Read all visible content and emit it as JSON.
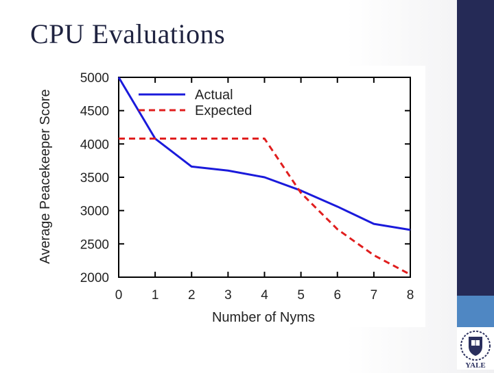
{
  "slide": {
    "title": "CPU Evaluations"
  },
  "logo": {
    "text": "YALE"
  },
  "colors": {
    "band": "#252a56",
    "accent": "#4f87c3",
    "actual": "#1a1adb",
    "expected": "#e01e1e"
  },
  "chart_data": {
    "type": "line",
    "title": "",
    "xlabel": "Number of Nyms",
    "ylabel": "Average Peacekeeper Score",
    "xlim": [
      0,
      8
    ],
    "ylim": [
      2000,
      5000
    ],
    "x": [
      0,
      1,
      2,
      3,
      4,
      5,
      6,
      7,
      8
    ],
    "x_ticks": [
      "0",
      "1",
      "2",
      "3",
      "4",
      "5",
      "6",
      "7",
      "8"
    ],
    "y_ticks": [
      "2000",
      "2500",
      "3000",
      "3500",
      "4000",
      "4500",
      "5000"
    ],
    "legend_position": "top-left",
    "series": [
      {
        "name": "Actual",
        "style": "solid",
        "color": "#1a1adb",
        "values": [
          5000,
          4080,
          3660,
          3600,
          3500,
          3300,
          3060,
          2800,
          2710
        ]
      },
      {
        "name": "Expected",
        "style": "dashed",
        "color": "#e01e1e",
        "values": [
          4080,
          4080,
          4080,
          4080,
          4080,
          3265,
          2720,
          2330,
          2040
        ]
      }
    ]
  }
}
